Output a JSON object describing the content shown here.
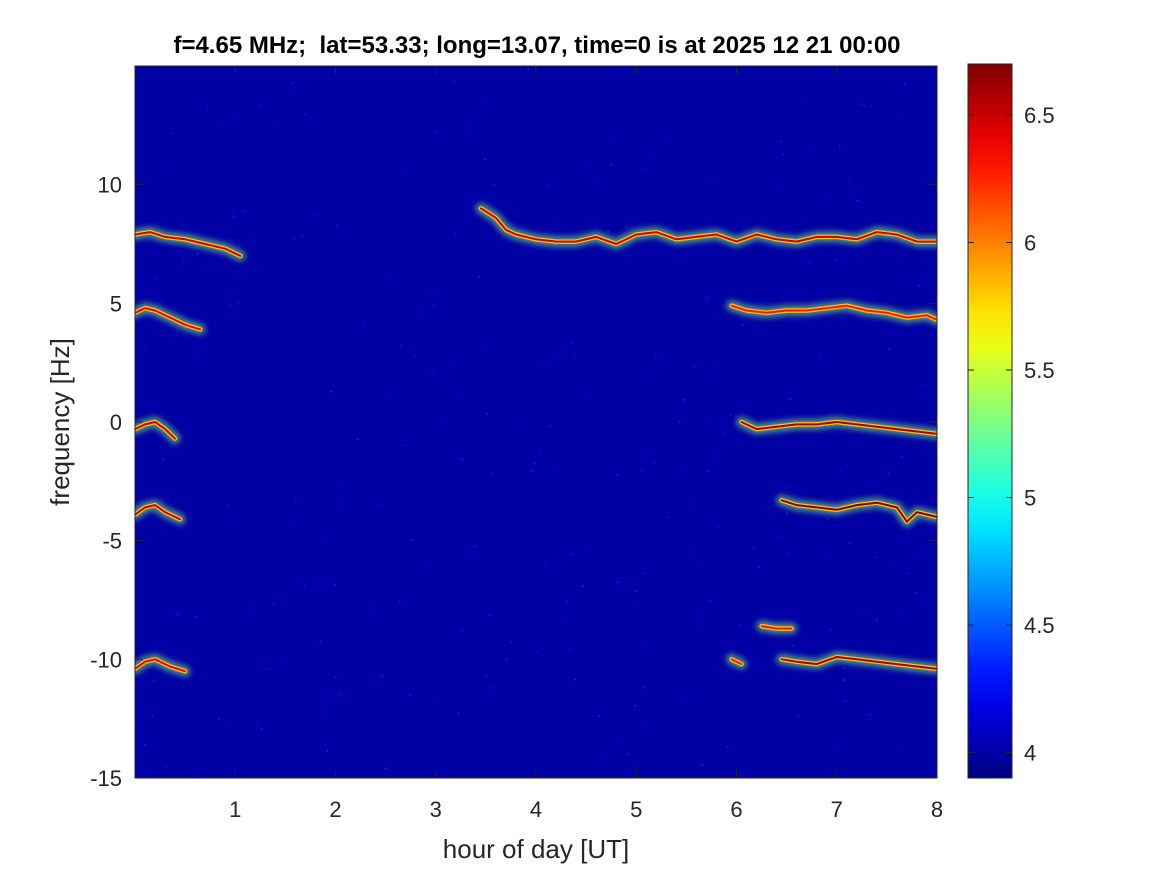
{
  "chart_data": {
    "type": "heatmap",
    "title": "f=4.65 MHz;  lat=53.33; long=13.07, time=0 is at 2025 12 21 00:00",
    "xlabel": "hour of day [UT]",
    "ylabel": "frequency [Hz]",
    "xlim": [
      0,
      8
    ],
    "ylim": [
      -15,
      15
    ],
    "x_ticks": [
      1,
      2,
      3,
      4,
      5,
      6,
      7,
      8
    ],
    "x_tick_labels": [
      "1",
      "2",
      "3",
      "4",
      "5",
      "6",
      "7",
      "8"
    ],
    "y_ticks": [
      10,
      5,
      0,
      -5,
      -10,
      -15
    ],
    "y_tick_labels": [
      "10",
      "5",
      "0",
      "-5",
      "-10",
      "-15"
    ],
    "colorbar": {
      "colormap": "jet",
      "clim": [
        3.9,
        6.7
      ],
      "ticks": [
        6.5,
        6,
        5.5,
        5,
        4.5,
        4
      ],
      "tick_labels": [
        "6.5",
        "6",
        "5.5",
        "5",
        "4.5",
        "4"
      ]
    },
    "background_level": 4.0,
    "traces": [
      {
        "x": [
          0.0,
          0.15,
          0.3,
          0.5,
          0.7,
          0.9,
          1.05
        ],
        "y": [
          7.9,
          8.0,
          7.8,
          7.7,
          7.5,
          7.3,
          7.0
        ],
        "level": 6.5
      },
      {
        "x": [
          0.0,
          0.1,
          0.2,
          0.35,
          0.5,
          0.65
        ],
        "y": [
          4.6,
          4.8,
          4.7,
          4.4,
          4.1,
          3.9
        ],
        "level": 6.4
      },
      {
        "x": [
          0.0,
          0.1,
          0.2,
          0.3,
          0.4
        ],
        "y": [
          -0.3,
          -0.1,
          0.0,
          -0.3,
          -0.7
        ],
        "level": 6.5
      },
      {
        "x": [
          0.0,
          0.1,
          0.2,
          0.3,
          0.45
        ],
        "y": [
          -3.9,
          -3.6,
          -3.5,
          -3.8,
          -4.1
        ],
        "level": 6.5
      },
      {
        "x": [
          0.0,
          0.1,
          0.2,
          0.35,
          0.5
        ],
        "y": [
          -10.4,
          -10.1,
          -10.0,
          -10.3,
          -10.5
        ],
        "level": 6.4
      },
      {
        "x": [
          3.45,
          3.6,
          3.7,
          3.8,
          4.0,
          4.2,
          4.4,
          4.6,
          4.8,
          5.0,
          5.2,
          5.4,
          5.6,
          5.8,
          6.0,
          6.2,
          6.4,
          6.6,
          6.8,
          7.0,
          7.2,
          7.4,
          7.6,
          7.8,
          8.0
        ],
        "y": [
          9.0,
          8.6,
          8.1,
          7.9,
          7.7,
          7.6,
          7.6,
          7.8,
          7.5,
          7.9,
          8.0,
          7.7,
          7.8,
          7.9,
          7.6,
          7.9,
          7.7,
          7.6,
          7.8,
          7.8,
          7.7,
          8.0,
          7.9,
          7.6,
          7.6
        ],
        "level": 6.5
      },
      {
        "x": [
          5.95,
          6.1,
          6.3,
          6.5,
          6.7,
          6.9,
          7.1,
          7.3,
          7.5,
          7.7,
          7.9,
          8.0
        ],
        "y": [
          4.9,
          4.7,
          4.6,
          4.7,
          4.7,
          4.8,
          4.9,
          4.7,
          4.6,
          4.4,
          4.5,
          4.3
        ],
        "level": 6.3
      },
      {
        "x": [
          6.05,
          6.2,
          6.4,
          6.6,
          6.8,
          7.0,
          7.2,
          7.4,
          7.6,
          7.8,
          8.0
        ],
        "y": [
          0.0,
          -0.3,
          -0.2,
          -0.1,
          -0.1,
          0.0,
          -0.1,
          -0.2,
          -0.3,
          -0.4,
          -0.5
        ],
        "level": 6.6
      },
      {
        "x": [
          6.45,
          6.6,
          6.8,
          7.0,
          7.2,
          7.4,
          7.6,
          7.7,
          7.8,
          8.0
        ],
        "y": [
          -3.3,
          -3.5,
          -3.6,
          -3.7,
          -3.5,
          -3.4,
          -3.6,
          -4.2,
          -3.8,
          -4.0
        ],
        "level": 6.7
      },
      {
        "x": [
          6.25,
          6.4,
          6.55
        ],
        "y": [
          -8.6,
          -8.7,
          -8.7
        ],
        "level": 6.3
      },
      {
        "x": [
          5.95,
          6.05
        ],
        "y": [
          -10.0,
          -10.2
        ],
        "level": 6.3
      },
      {
        "x": [
          6.45,
          6.6,
          6.8,
          7.0,
          7.2,
          7.4,
          7.6,
          7.8,
          8.0
        ],
        "y": [
          -10.0,
          -10.1,
          -10.2,
          -9.9,
          -10.0,
          -10.1,
          -10.2,
          -10.3,
          -10.4
        ],
        "level": 6.6
      }
    ]
  }
}
